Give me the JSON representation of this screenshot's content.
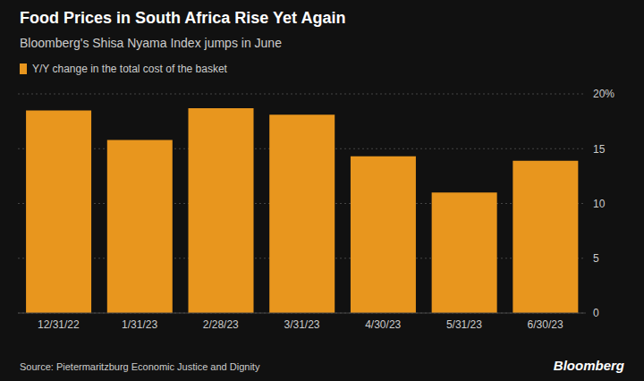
{
  "chart_data": {
    "type": "bar",
    "title": "Food Prices in South Africa Rise Yet Again",
    "subtitle": "Bloomberg's Shisa Nyama Index jumps in June",
    "categories": [
      "12/31/22",
      "1/31/23",
      "2/28/23",
      "3/31/23",
      "4/30/23",
      "5/31/23",
      "6/30/23"
    ],
    "series": [
      {
        "name": "Y/Y change in the total cost of the basket",
        "color": "#E8961E",
        "values": [
          18.5,
          15.8,
          18.7,
          18.1,
          14.3,
          11.0,
          13.9
        ]
      }
    ],
    "ylim": [
      0,
      20
    ],
    "yticks": [
      0,
      5,
      10,
      15,
      {
        "value": 20,
        "label": "20%"
      }
    ],
    "grid": true,
    "legend": "top-left",
    "annotations": [
      "Source: Pietermaritzburg Economic Justice and Dignity",
      "Bloomberg"
    ]
  }
}
